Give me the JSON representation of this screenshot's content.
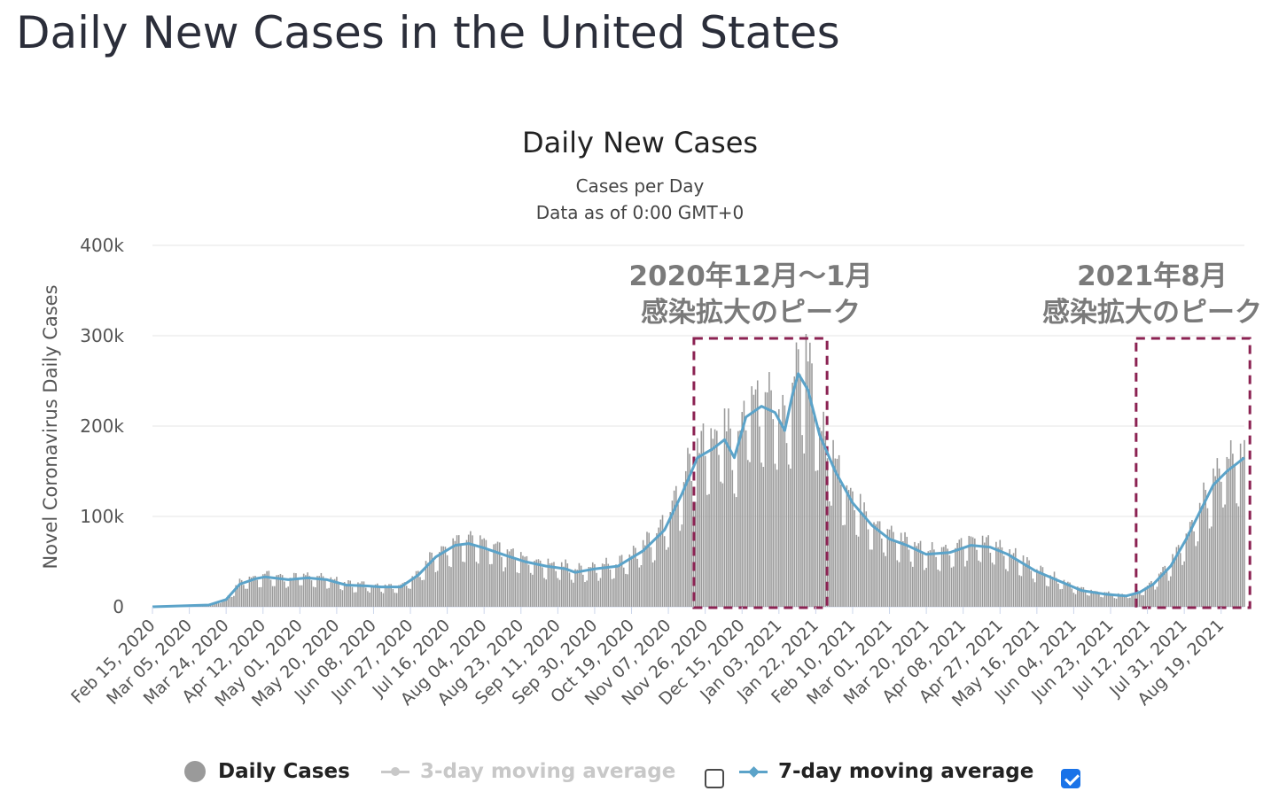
{
  "page": {
    "title": "Daily New Cases in the United States"
  },
  "colors": {
    "bars": "#9a9a9a",
    "ma7": "#5ba3c9",
    "ma3_disabled": "#cccccc",
    "highlight": "#8b2252",
    "grid": "#e6e6e6"
  },
  "legend": {
    "daily_cases": "Daily Cases",
    "ma3": "3-day moving average",
    "ma3_checked": false,
    "ma7": "7-day moving average",
    "ma7_checked": true
  },
  "annotations": [
    {
      "line1": "2020年12月〜1月",
      "line2": "感染拡大のピーク",
      "from": "2020-11-22",
      "to": "2021-01-26"
    },
    {
      "line1": "2021年8月",
      "line2": "感染拡大のピーク",
      "from": "2021-07-08",
      "to": "2021-09-01"
    }
  ],
  "chart_data": {
    "type": "bar",
    "title": "Daily New Cases",
    "subtitle": "Cases per Day",
    "subtitle2": "Data as of 0:00 GMT+0",
    "ylabel": "Novel Coronavirus Daily Cases",
    "xlabel": "",
    "ylim": [
      0,
      400000
    ],
    "yticks": [
      0,
      100000,
      200000,
      300000,
      400000
    ],
    "ytick_labels": [
      "0",
      "100k",
      "200k",
      "300k",
      "400k"
    ],
    "grid": true,
    "legend_position": "bottom",
    "x_start": "2020-02-15",
    "x_end": "2021-08-31",
    "xtick_dates": [
      "2020-02-15",
      "2020-03-05",
      "2020-03-24",
      "2020-04-12",
      "2020-05-01",
      "2020-05-20",
      "2020-06-08",
      "2020-06-27",
      "2020-07-16",
      "2020-08-04",
      "2020-08-23",
      "2020-09-11",
      "2020-09-30",
      "2020-10-19",
      "2020-11-07",
      "2020-11-26",
      "2020-12-15",
      "2021-01-03",
      "2021-01-22",
      "2021-02-10",
      "2021-03-01",
      "2021-03-20",
      "2021-04-08",
      "2021-04-27",
      "2021-05-16",
      "2021-06-04",
      "2021-06-23",
      "2021-07-12",
      "2021-07-31",
      "2021-08-19"
    ],
    "xtick_labels": [
      "Feb 15, 2020",
      "Mar 05, 2020",
      "Mar 24, 2020",
      "Apr 12, 2020",
      "May 01, 2020",
      "May 20, 2020",
      "Jun 08, 2020",
      "Jun 27, 2020",
      "Jul 16, 2020",
      "Aug 04, 2020",
      "Aug 23, 2020",
      "Sep 11, 2020",
      "Sep 30, 2020",
      "Oct 19, 2020",
      "Nov 07, 2020",
      "Nov 26, 2020",
      "Dec 15, 2020",
      "Jan 03, 2021",
      "Jan 22, 2021",
      "Feb 10, 2021",
      "Mar 01, 2021",
      "Mar 20, 2021",
      "Apr 08, 2021",
      "Apr 27, 2021",
      "May 16, 2021",
      "Jun 04, 2021",
      "Jun 23, 2021",
      "Jul 12, 2021",
      "Jul 31, 2021",
      "Aug 19, 2021"
    ],
    "series": [
      {
        "name": "Daily Cases",
        "kind": "bar",
        "values": []
      },
      {
        "name": "7-day moving average",
        "kind": "line",
        "points": [
          [
            "2020-02-15",
            0
          ],
          [
            "2020-03-15",
            2000
          ],
          [
            "2020-03-24",
            8000
          ],
          [
            "2020-03-31",
            25000
          ],
          [
            "2020-04-08",
            31000
          ],
          [
            "2020-04-13",
            33000
          ],
          [
            "2020-04-25",
            30000
          ],
          [
            "2020-05-05",
            32000
          ],
          [
            "2020-05-15",
            30000
          ],
          [
            "2020-05-25",
            24000
          ],
          [
            "2020-06-05",
            23000
          ],
          [
            "2020-06-12",
            22000
          ],
          [
            "2020-06-22",
            22000
          ],
          [
            "2020-07-01",
            35000
          ],
          [
            "2020-07-10",
            55000
          ],
          [
            "2020-07-20",
            68000
          ],
          [
            "2020-07-27",
            70000
          ],
          [
            "2020-08-04",
            65000
          ],
          [
            "2020-08-15",
            57000
          ],
          [
            "2020-08-25",
            50000
          ],
          [
            "2020-09-05",
            45000
          ],
          [
            "2020-09-15",
            42000
          ],
          [
            "2020-09-20",
            38000
          ],
          [
            "2020-09-30",
            42000
          ],
          [
            "2020-10-12",
            45000
          ],
          [
            "2020-10-25",
            62000
          ],
          [
            "2020-11-05",
            85000
          ],
          [
            "2020-11-14",
            125000
          ],
          [
            "2020-11-22",
            165000
          ],
          [
            "2020-11-30",
            175000
          ],
          [
            "2020-12-06",
            185000
          ],
          [
            "2020-12-11",
            165000
          ],
          [
            "2020-12-17",
            210000
          ],
          [
            "2020-12-25",
            222000
          ],
          [
            "2021-01-01",
            215000
          ],
          [
            "2021-01-06",
            195000
          ],
          [
            "2021-01-10",
            235000
          ],
          [
            "2021-01-13",
            258000
          ],
          [
            "2021-01-18",
            240000
          ],
          [
            "2021-01-24",
            190000
          ],
          [
            "2021-02-01",
            150000
          ],
          [
            "2021-02-10",
            115000
          ],
          [
            "2021-02-20",
            90000
          ],
          [
            "2021-03-01",
            75000
          ],
          [
            "2021-03-10",
            68000
          ],
          [
            "2021-03-20",
            58000
          ],
          [
            "2021-04-01",
            60000
          ],
          [
            "2021-04-12",
            68000
          ],
          [
            "2021-04-22",
            66000
          ],
          [
            "2021-05-01",
            58000
          ],
          [
            "2021-05-15",
            40000
          ],
          [
            "2021-05-28",
            28000
          ],
          [
            "2021-06-08",
            18000
          ],
          [
            "2021-06-20",
            14000
          ],
          [
            "2021-07-01",
            12000
          ],
          [
            "2021-07-08",
            16000
          ],
          [
            "2021-07-15",
            25000
          ],
          [
            "2021-07-24",
            45000
          ],
          [
            "2021-08-01",
            75000
          ],
          [
            "2021-08-08",
            105000
          ],
          [
            "2021-08-15",
            135000
          ],
          [
            "2021-08-22",
            150000
          ],
          [
            "2021-08-31",
            165000
          ]
        ]
      }
    ]
  }
}
